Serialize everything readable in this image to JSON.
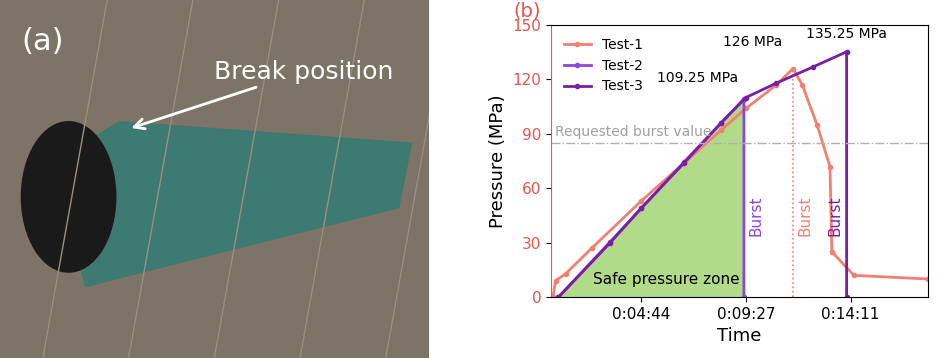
{
  "photo": {
    "panel_label": "(a)",
    "annotation": "Break position"
  },
  "chart_data": {
    "type": "line",
    "title": "(b)",
    "x_label": "Time",
    "y_label": "Pressure (MPa)",
    "xlim": [
      40,
      1060
    ],
    "xticks": [
      {
        "value": 284,
        "label": "0:04:44"
      },
      {
        "value": 567,
        "label": "0:09:27"
      },
      {
        "value": 851,
        "label": "0:14:11"
      }
    ],
    "ylim": [
      0,
      150
    ],
    "yticks": [
      0,
      30,
      60,
      90,
      120,
      150
    ],
    "legend": "upper left",
    "reference_line": {
      "label": "Requested burst value",
      "value": 85
    },
    "burst_label": "Burst",
    "safe_zone_label": "Safe pressure zone",
    "series": [
      {
        "name": "Test-1",
        "color": "#f28072",
        "marker": "o",
        "line_style": "solid",
        "peak_label": "126 MPa",
        "x": [
          45,
          52,
          80,
          150,
          284,
          400,
          500,
          567,
          650,
          695,
          720,
          760,
          795,
          800,
          860,
          1060
        ],
        "values": [
          0,
          9,
          13,
          27,
          53,
          74,
          92,
          104,
          117,
          126,
          117,
          95,
          72,
          25,
          12,
          10
        ]
      },
      {
        "name": "Test-2",
        "color": "#8e44e0",
        "marker": "o",
        "line_style": "solid",
        "peak_label": "109.25 MPa",
        "x": [
          60,
          200,
          284,
          400,
          500,
          562,
          562
        ],
        "values": [
          0,
          30.5,
          49,
          74.5,
          96,
          109.25,
          0
        ]
      },
      {
        "name": "Test-3",
        "color": "#7a1fa2",
        "marker": "o",
        "line_style": "solid",
        "peak_label": "135.25 MPa",
        "x": [
          60,
          200,
          284,
          400,
          500,
          567,
          650,
          750,
          840,
          840
        ],
        "values": [
          0,
          30,
          49,
          74,
          96,
          110,
          118,
          127,
          135.25,
          0
        ]
      }
    ]
  }
}
